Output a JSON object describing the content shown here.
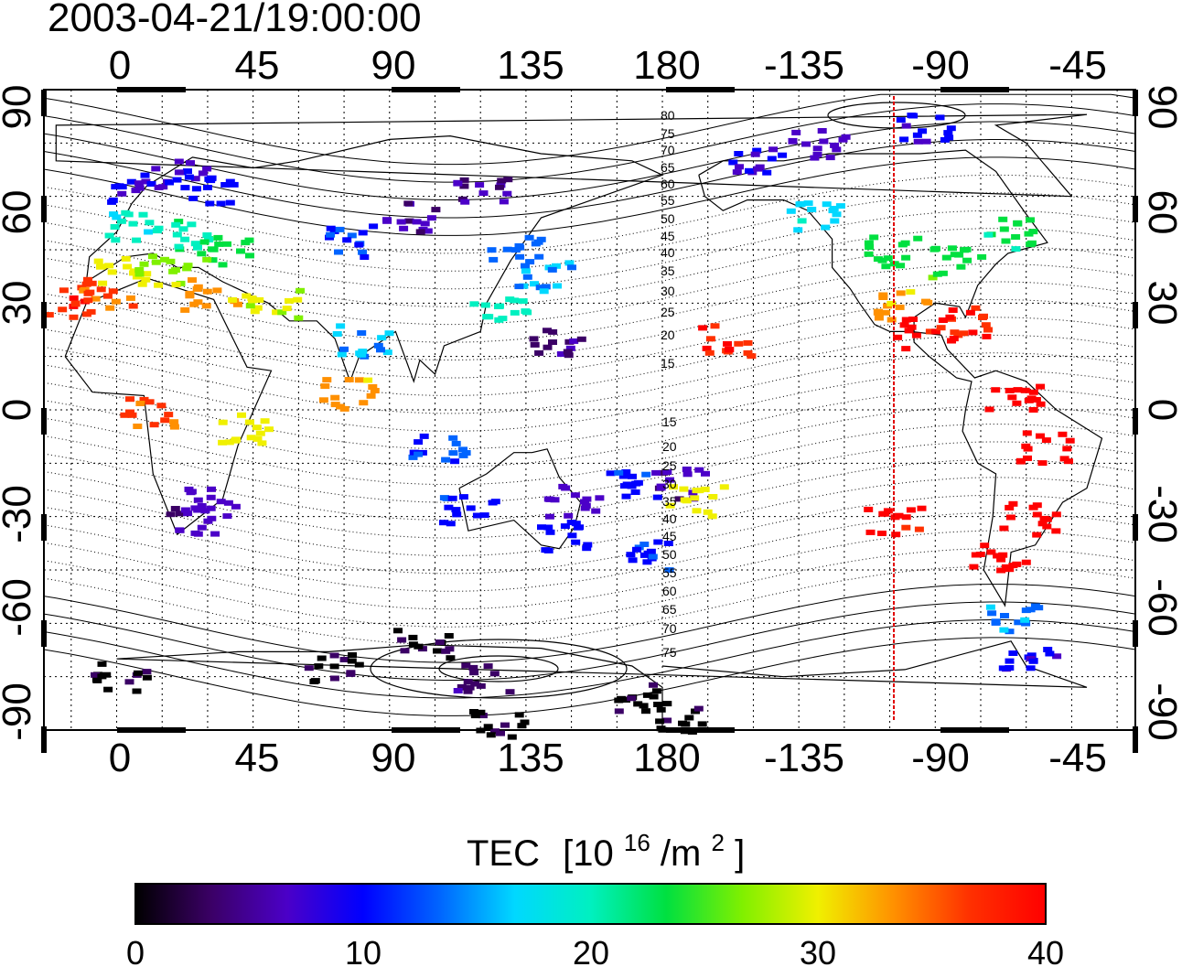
{
  "title": "2003-04-21/19:00:00",
  "map": {
    "lon_ticks": [
      "0",
      "45",
      "90",
      "135",
      "180",
      "-135",
      "-90",
      "-45"
    ],
    "lat_ticks": [
      "90",
      "60",
      "30",
      "0",
      "-30",
      "-60",
      "-90"
    ],
    "lon_start": -24,
    "lon_range": 360,
    "lat_range": [
      -90,
      90
    ],
    "grid": "dotted 15° graticule",
    "subsolar_meridian_color": "#e00000"
  },
  "contours": {
    "north_labels": [
      "80",
      "75",
      "70",
      "65",
      "60",
      "55",
      "50",
      "45",
      "40",
      "35",
      "30",
      "25",
      "20",
      "15"
    ],
    "south_labels": [
      "15",
      "20",
      "25",
      "30",
      "35",
      "40",
      "45",
      "50",
      "55",
      "60",
      "65",
      "70",
      "75"
    ]
  },
  "colorbar": {
    "label": "TEC",
    "units_base": "[10",
    "units_exp": "16",
    "units_mid": "/m",
    "units_exp2": "2",
    "units_end": "]",
    "ticks": [
      "0",
      "10",
      "20",
      "30",
      "40"
    ],
    "min": 0,
    "max": 40,
    "colors": [
      "#000000",
      "#3b0066",
      "#4b00c8",
      "#0000ff",
      "#0064ff",
      "#00d8ff",
      "#00f0c0",
      "#00e040",
      "#80f000",
      "#f0f000",
      "#ff9000",
      "#ff3000",
      "#ff0000"
    ]
  },
  "tec_patches": [
    {
      "lon": 5,
      "lat": 63,
      "tec": 9
    },
    {
      "lon": 20,
      "lat": 67,
      "tec": 8
    },
    {
      "lon": 30,
      "lat": 62,
      "tec": 10
    },
    {
      "lon": 5,
      "lat": 52,
      "tec": 19
    },
    {
      "lon": 20,
      "lat": 50,
      "tec": 21
    },
    {
      "lon": 35,
      "lat": 45,
      "tec": 24
    },
    {
      "lon": 0,
      "lat": 40,
      "tec": 30
    },
    {
      "lon": 15,
      "lat": 40,
      "tec": 28
    },
    {
      "lon": -5,
      "lat": 33,
      "tec": 36
    },
    {
      "lon": -15,
      "lat": 30,
      "tec": 38
    },
    {
      "lon": 30,
      "lat": 33,
      "tec": 33
    },
    {
      "lon": 50,
      "lat": 30,
      "tec": 29
    },
    {
      "lon": 75,
      "lat": 48,
      "tec": 12
    },
    {
      "lon": 95,
      "lat": 55,
      "tec": 6
    },
    {
      "lon": 120,
      "lat": 62,
      "tec": 5
    },
    {
      "lon": 130,
      "lat": 45,
      "tec": 13
    },
    {
      "lon": 140,
      "lat": 38,
      "tec": 15
    },
    {
      "lon": 125,
      "lat": 28,
      "tec": 20
    },
    {
      "lon": 145,
      "lat": 20,
      "tec": 4
    },
    {
      "lon": 80,
      "lat": 20,
      "tec": 15
    },
    {
      "lon": 75,
      "lat": 5,
      "tec": 33
    },
    {
      "lon": 10,
      "lat": 0,
      "tec": 36
    },
    {
      "lon": 40,
      "lat": -5,
      "tec": 30
    },
    {
      "lon": 25,
      "lat": -30,
      "tec": 6
    },
    {
      "lon": 30,
      "lat": -25,
      "tec": 7
    },
    {
      "lon": 105,
      "lat": -10,
      "tec": 12
    },
    {
      "lon": 115,
      "lat": -28,
      "tec": 11
    },
    {
      "lon": 145,
      "lat": -35,
      "tec": 10
    },
    {
      "lon": 150,
      "lat": -25,
      "tec": 7
    },
    {
      "lon": 175,
      "lat": -40,
      "tec": 11
    },
    {
      "lon": 168,
      "lat": -20,
      "tec": 11
    },
    {
      "lon": 185,
      "lat": -20,
      "tec": 5
    },
    {
      "lon": 190,
      "lat": -25,
      "tec": 30
    },
    {
      "lon": 200,
      "lat": 20,
      "tec": 38
    },
    {
      "lon": 210,
      "lat": 70,
      "tec": 8
    },
    {
      "lon": 230,
      "lat": 75,
      "tec": 7
    },
    {
      "lon": 265,
      "lat": 80,
      "tec": 9
    },
    {
      "lon": 230,
      "lat": 55,
      "tec": 17
    },
    {
      "lon": 255,
      "lat": 45,
      "tec": 23
    },
    {
      "lon": 275,
      "lat": 42,
      "tec": 24
    },
    {
      "lon": 295,
      "lat": 50,
      "tec": 22
    },
    {
      "lon": 258,
      "lat": 30,
      "tec": 33
    },
    {
      "lon": 265,
      "lat": 22,
      "tec": 39
    },
    {
      "lon": 280,
      "lat": 25,
      "tec": 38
    },
    {
      "lon": 295,
      "lat": 5,
      "tec": 40
    },
    {
      "lon": 305,
      "lat": -10,
      "tec": 40
    },
    {
      "lon": 300,
      "lat": -30,
      "tec": 40
    },
    {
      "lon": 290,
      "lat": -40,
      "tec": 40
    },
    {
      "lon": 255,
      "lat": -30,
      "tec": 39
    },
    {
      "lon": 295,
      "lat": -58,
      "tec": 14
    },
    {
      "lon": 300,
      "lat": -68,
      "tec": 9
    },
    {
      "lon": 100,
      "lat": -65,
      "tec": 2
    },
    {
      "lon": 125,
      "lat": -87,
      "tec": 1
    },
    {
      "lon": 170,
      "lat": -80,
      "tec": 1
    },
    {
      "lon": 185,
      "lat": -86,
      "tec": 1
    },
    {
      "lon": 70,
      "lat": -72,
      "tec": 2
    },
    {
      "lon": 0,
      "lat": -75,
      "tec": 1
    },
    {
      "lon": 120,
      "lat": -75,
      "tec": 4
    }
  ]
}
